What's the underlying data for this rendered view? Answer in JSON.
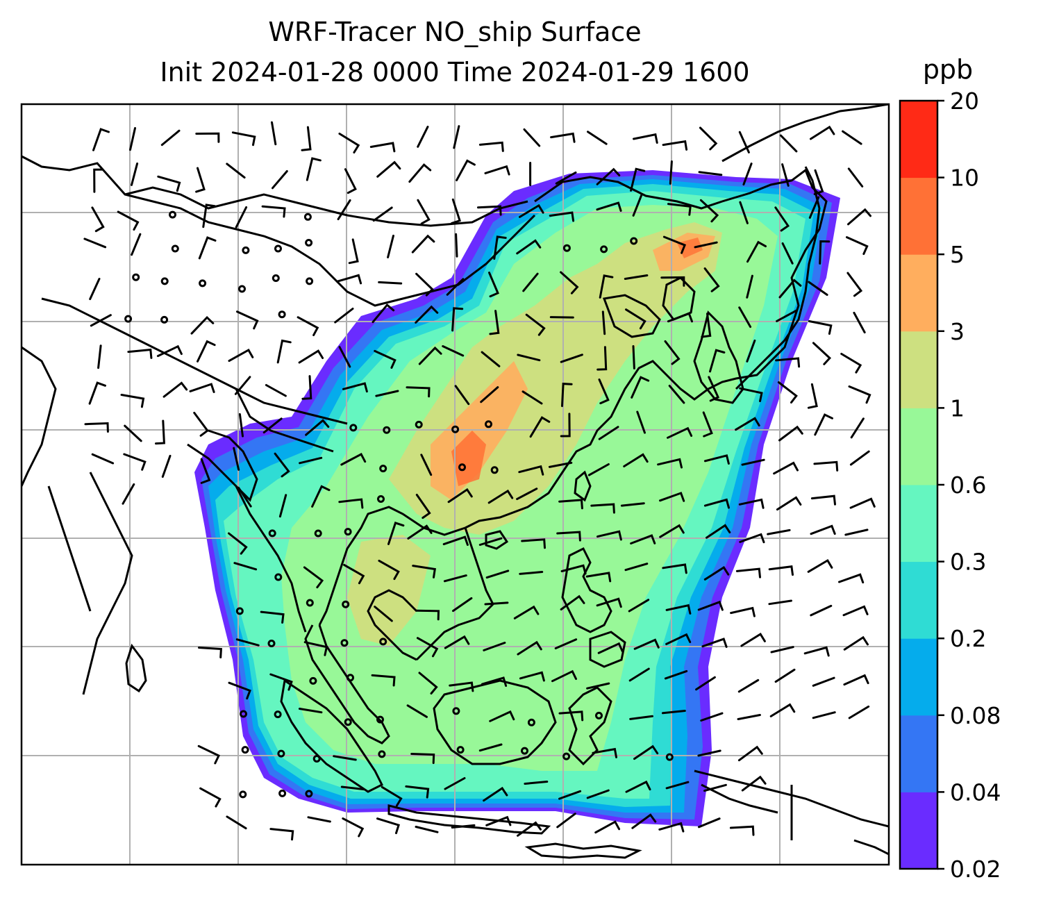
{
  "title": {
    "line1": "WRF-Tracer NO_ship Surface",
    "line2": "Init 2024-01-28 0000 Time 2024-01-29 1600"
  },
  "colorbar": {
    "unit": "ppb",
    "levels": [
      "0.02",
      "0.04",
      "0.08",
      "0.2",
      "0.3",
      "0.6",
      "1",
      "3",
      "5",
      "10",
      "20"
    ],
    "colors": [
      "#6a2cff",
      "#3476f4",
      "#05acec",
      "#2fdcd4",
      "#65f6c0",
      "#98f898",
      "#cde080",
      "#ffae5e",
      "#ff7136",
      "#ff2a16"
    ]
  },
  "map": {
    "variable": "NO_ship",
    "level": "Surface",
    "gridlines": true,
    "wind_barbs": true,
    "coastlines": true
  },
  "chart_data": {
    "type": "heatmap",
    "title": "WRF-Tracer NO_ship Surface\nInit 2024-01-28 0000 Time 2024-01-29 1600",
    "colorbar_label": "ppb",
    "color_levels": [
      0.02,
      0.04,
      0.08,
      0.2,
      0.3,
      0.6,
      1,
      3,
      5,
      10,
      20
    ]
  }
}
